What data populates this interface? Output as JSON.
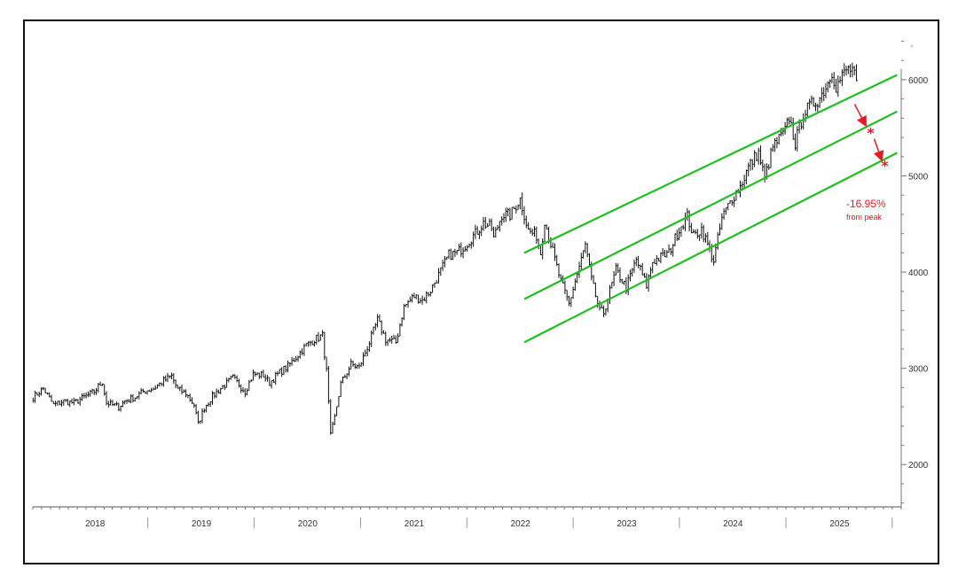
{
  "chart_data": {
    "type": "line",
    "title": "",
    "xlabel": "",
    "ylabel": "",
    "x_tick_labels": [
      "2018",
      "2019",
      "2020",
      "2021",
      "2022",
      "2023",
      "2024",
      "2025"
    ],
    "y_tick_labels": [
      "2000",
      "3000",
      "4000",
      "5000",
      "6000"
    ],
    "y_ticks": [
      2000,
      3000,
      4000,
      5000,
      6000
    ],
    "xlim": [
      "2017-06-01",
      "2025-08-01"
    ],
    "ylim": [
      1560,
      6460
    ],
    "grid": false,
    "series": [
      {
        "values_by_date": [
          [
            "2017-06-02",
            2700
          ],
          [
            "2017-07-07",
            2790
          ],
          [
            "2017-08-11",
            2620
          ],
          [
            "2017-09-15",
            2660
          ],
          [
            "2017-10-20",
            2640
          ],
          [
            "2017-11-24",
            2700
          ],
          [
            "2017-12-29",
            2760
          ],
          [
            "2018-01-26",
            2860
          ],
          [
            "2018-02-09",
            2640
          ],
          [
            "2018-03-23",
            2600
          ],
          [
            "2018-04-13",
            2660
          ],
          [
            "2018-05-18",
            2700
          ],
          [
            "2018-06-15",
            2760
          ],
          [
            "2018-07-20",
            2790
          ],
          [
            "2018-08-24",
            2870
          ],
          [
            "2018-09-21",
            2920
          ],
          [
            "2018-10-12",
            2780
          ],
          [
            "2018-11-09",
            2740
          ],
          [
            "2018-12-07",
            2620
          ],
          [
            "2018-12-21",
            2420
          ],
          [
            "2019-01-11",
            2590
          ],
          [
            "2019-02-08",
            2710
          ],
          [
            "2019-03-08",
            2790
          ],
          [
            "2019-04-19",
            2900
          ],
          [
            "2019-05-31",
            2760
          ],
          [
            "2019-06-28",
            2940
          ],
          [
            "2019-08-02",
            2930
          ],
          [
            "2019-08-23",
            2850
          ],
          [
            "2019-09-27",
            2960
          ],
          [
            "2019-10-25",
            3020
          ],
          [
            "2019-11-29",
            3140
          ],
          [
            "2019-12-27",
            3240
          ],
          [
            "2020-01-24",
            3300
          ],
          [
            "2020-02-21",
            3340
          ],
          [
            "2020-03-06",
            2970
          ],
          [
            "2020-03-20",
            2300
          ],
          [
            "2020-04-03",
            2490
          ],
          [
            "2020-04-24",
            2840
          ],
          [
            "2020-05-29",
            3040
          ],
          [
            "2020-06-26",
            3010
          ],
          [
            "2020-07-31",
            3270
          ],
          [
            "2020-08-28",
            3500
          ],
          [
            "2020-09-25",
            3300
          ],
          [
            "2020-10-30",
            3270
          ],
          [
            "2020-11-27",
            3640
          ],
          [
            "2020-12-31",
            3750
          ],
          [
            "2021-01-29",
            3710
          ],
          [
            "2021-02-26",
            3810
          ],
          [
            "2021-03-26",
            3970
          ],
          [
            "2021-04-30",
            4180
          ],
          [
            "2021-05-28",
            4200
          ],
          [
            "2021-06-25",
            4280
          ],
          [
            "2021-07-30",
            4400
          ],
          [
            "2021-08-27",
            4510
          ],
          [
            "2021-09-24",
            4460
          ],
          [
            "2021-10-01",
            4350
          ],
          [
            "2021-10-29",
            4600
          ],
          [
            "2021-11-26",
            4590
          ],
          [
            "2021-12-31",
            4760
          ],
          [
            "2022-01-28",
            4430
          ],
          [
            "2022-02-25",
            4380
          ],
          [
            "2022-03-11",
            4200
          ],
          [
            "2022-03-25",
            4540
          ],
          [
            "2022-04-29",
            4130
          ],
          [
            "2022-05-20",
            3900
          ],
          [
            "2022-06-17",
            3670
          ],
          [
            "2022-07-01",
            3830
          ],
          [
            "2022-08-12",
            4280
          ],
          [
            "2022-09-02",
            3920
          ],
          [
            "2022-09-30",
            3590
          ],
          [
            "2022-10-14",
            3580
          ],
          [
            "2022-11-25",
            4020
          ],
          [
            "2022-12-30",
            3840
          ],
          [
            "2023-02-03",
            4130
          ],
          [
            "2023-03-10",
            3860
          ],
          [
            "2023-03-31",
            4110
          ],
          [
            "2023-05-26",
            4200
          ],
          [
            "2023-06-30",
            4450
          ],
          [
            "2023-07-28",
            4580
          ],
          [
            "2023-08-18",
            4370
          ],
          [
            "2023-09-15",
            4450
          ],
          [
            "2023-10-27",
            4120
          ],
          [
            "2023-11-24",
            4560
          ],
          [
            "2023-12-29",
            4770
          ],
          [
            "2024-01-26",
            4890
          ],
          [
            "2024-02-23",
            5090
          ],
          [
            "2024-03-28",
            5250
          ],
          [
            "2024-04-19",
            4970
          ],
          [
            "2024-05-17",
            5300
          ],
          [
            "2024-06-28",
            5460
          ],
          [
            "2024-07-12",
            5610
          ],
          [
            "2024-08-02",
            5340
          ],
          [
            "2024-08-30",
            5650
          ],
          [
            "2024-09-27",
            5740
          ],
          [
            "2024-10-25",
            5810
          ],
          [
            "2024-11-22",
            5970
          ],
          [
            "2024-12-06",
            6090
          ],
          [
            "2024-12-20",
            5930
          ],
          [
            "2025-01-24",
            6100
          ],
          [
            "2025-02-14",
            6110
          ],
          [
            "2025-02-28",
            5950
          ]
        ]
      }
    ],
    "channel_lines": [
      {
        "color": "#1fbf1f",
        "from": [
          "2022-01-14",
          4200
        ],
        "to": [
          "2025-07-18",
          6050
        ]
      },
      {
        "color": "#1fbf1f",
        "from": [
          "2022-01-14",
          3720
        ],
        "to": [
          "2025-07-18",
          5670
        ]
      },
      {
        "color": "#1fbf1f",
        "from": [
          "2022-01-14",
          3270
        ],
        "to": [
          "2025-07-18",
          5240
        ]
      }
    ],
    "projection_points": [
      {
        "date": "2025-04-18",
        "value": 5450
      },
      {
        "date": "2025-06-06",
        "value": 5110
      }
    ],
    "annotation": {
      "line1": "-16.95%",
      "line2": "from peak",
      "color": "#e8191f"
    }
  }
}
